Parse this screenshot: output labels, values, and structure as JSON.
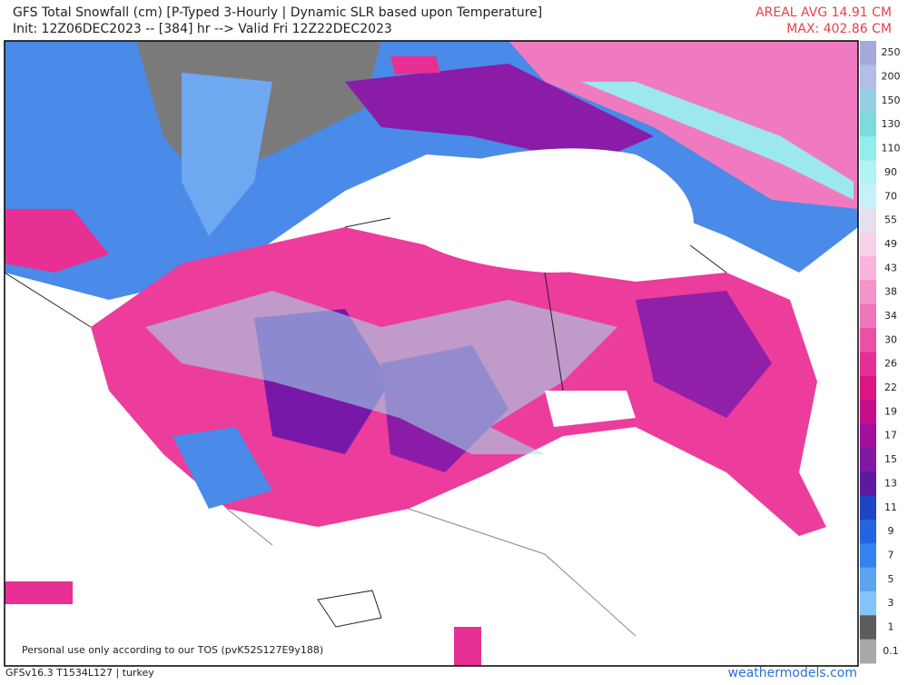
{
  "header": {
    "title": "GFS Total Snowfall (cm) [P-Typed 3-Hourly | Dynamic SLR based upon Temperature]",
    "subtitle": "Init: 12Z06DEC2023 -- [384] hr --> Valid Fri 12Z22DEC2023",
    "areal_avg": "AREAL AVG 14.91 CM",
    "max": "MAX: 402.86 CM"
  },
  "footer": {
    "tos": "Personal use only according to our TOS (pvK52S127E9y188)",
    "model": "GFSv16.3 T1534L127 | turkey",
    "site": "weathermodels.com"
  },
  "legend": {
    "labels": [
      250,
      200,
      150,
      130,
      110,
      90,
      70,
      55,
      49,
      43,
      38,
      34,
      30,
      26,
      22,
      19,
      17,
      15,
      13,
      11,
      9,
      7,
      5,
      3,
      1,
      0.1
    ],
    "colors": [
      "#a4a8dc",
      "#b4bce8",
      "#94d0e4",
      "#7cdcdc",
      "#94ecec",
      "#b0f4f4",
      "#c8f0f8",
      "#e4e0f0",
      "#f8d0e8",
      "#f8b4dc",
      "#f494c8",
      "#f074b8",
      "#ec50a4",
      "#e43094",
      "#dc1484",
      "#c4108c",
      "#a0109c",
      "#8018a4",
      "#5c1aa0",
      "#1c44c4",
      "#2464e0",
      "#3484f0",
      "#5ca4f0",
      "#84c4f8",
      "#5c5c5c",
      "#a8a8a8"
    ]
  }
}
